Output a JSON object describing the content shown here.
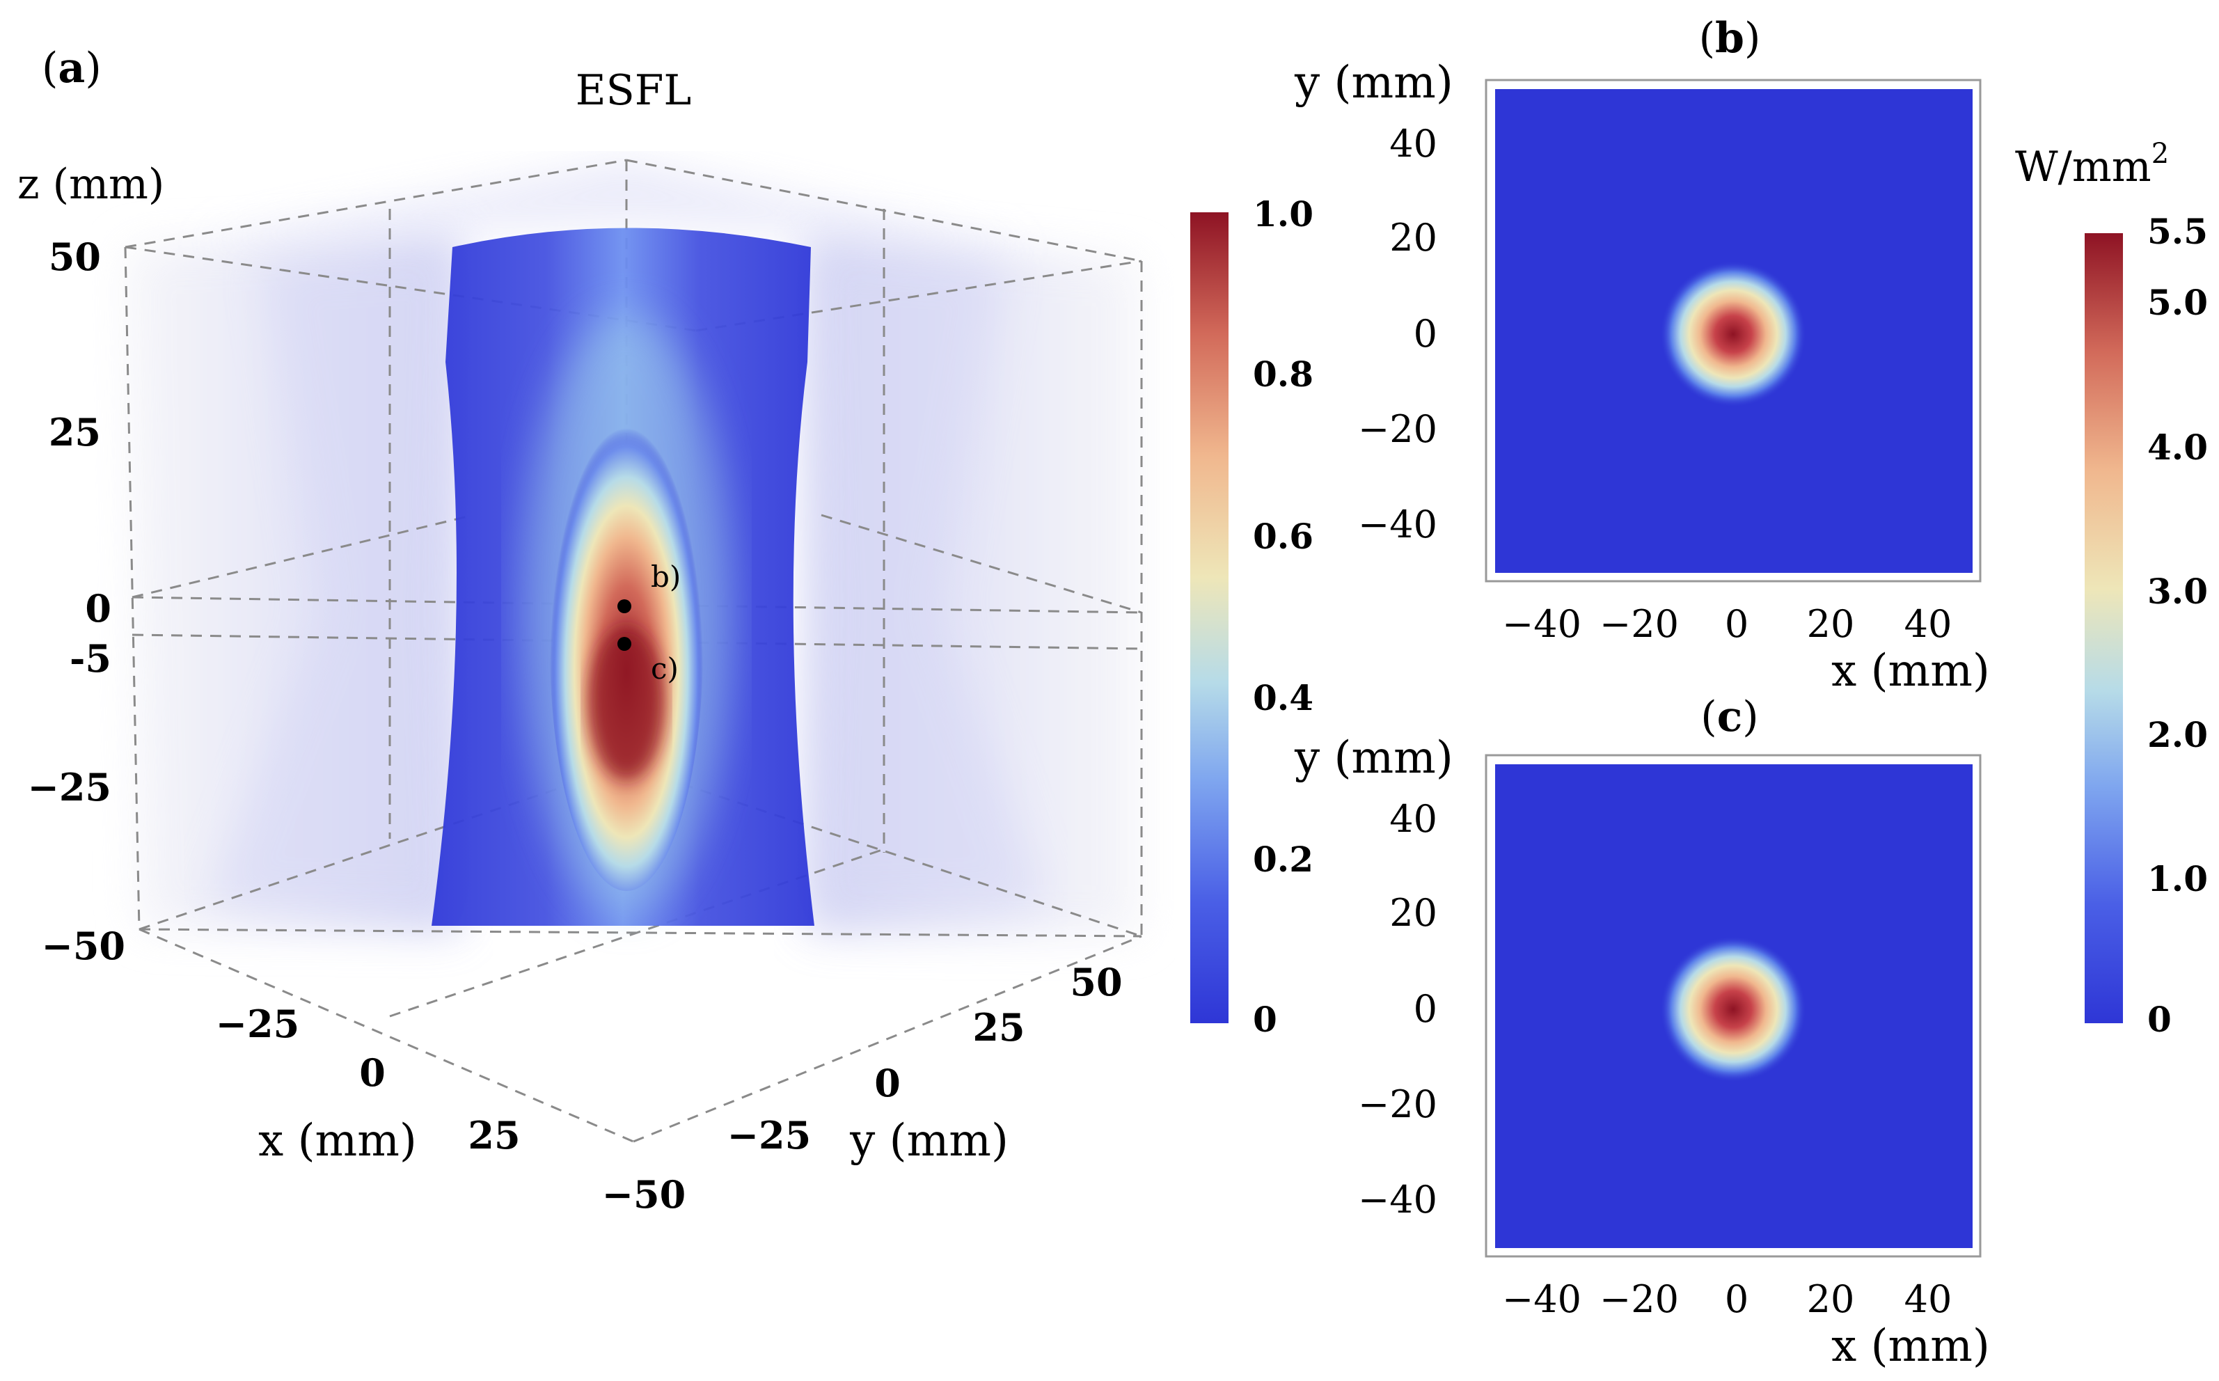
{
  "figure": {
    "panels": {
      "a": {
        "label": "(a)",
        "label_letter": "a"
      },
      "b": {
        "label": "(b)",
        "label_letter": "b"
      },
      "c": {
        "label": "(c)",
        "label_letter": "c"
      }
    }
  },
  "chart_data": [
    {
      "id": "a",
      "type": "heatmap",
      "subtype": "3d-volume",
      "title": "ESFL",
      "xlabel": "x (mm)",
      "ylabel": "y (mm)",
      "zlabel": "z (mm)",
      "x_ticks": [
        "−25",
        "0",
        "25"
      ],
      "y_ticks": [
        "−50",
        "−25",
        "0",
        "25",
        "50"
      ],
      "z_ticks": [
        "50",
        "25",
        "0",
        "-5",
        "−25",
        "−50"
      ],
      "xlim": [
        -50,
        50
      ],
      "ylim": [
        -50,
        50
      ],
      "zlim": [
        -50,
        50
      ],
      "colorbar": {
        "min": 0,
        "max": 1.0,
        "ticks": [
          "1.0",
          "0.8",
          "0.6",
          "0.4",
          "0.2",
          "0"
        ]
      },
      "slice_markers": [
        {
          "label": "b)",
          "z": 0
        },
        {
          "label": "c)",
          "z": -5
        }
      ],
      "peak_z_range": [
        -15,
        5
      ]
    },
    {
      "id": "b",
      "type": "heatmap",
      "title": "(b)",
      "xlabel": "x (mm)",
      "ylabel": "y (mm)",
      "xlim": [
        -50,
        50
      ],
      "ylim": [
        -50,
        50
      ],
      "x_ticks": [
        "−40",
        "−20",
        "0",
        "20",
        "40"
      ],
      "y_ticks": [
        "40",
        "20",
        "0",
        "−20",
        "−40"
      ],
      "spot_center": [
        0,
        0
      ],
      "spot_radius_mm": 15,
      "peak": 5.3
    },
    {
      "id": "c",
      "type": "heatmap",
      "title": "(c)",
      "xlabel": "x (mm)",
      "ylabel": "y (mm)",
      "xlim": [
        -50,
        50
      ],
      "ylim": [
        -50,
        50
      ],
      "x_ticks": [
        "−40",
        "−20",
        "0",
        "20",
        "40"
      ],
      "y_ticks": [
        "40",
        "20",
        "0",
        "−20",
        "−40"
      ],
      "spot_center": [
        0,
        0
      ],
      "spot_radius_mm": 15,
      "peak": 5.5
    }
  ],
  "colorbar_right": {
    "unit": "W/mm",
    "unit_sup": "2",
    "min": 0,
    "max": 5.5,
    "ticks": [
      "5.5",
      "5.0",
      "4.0",
      "3.0",
      "2.0",
      "1.0",
      "0"
    ]
  },
  "colors": {
    "low": "#2e36d6",
    "mid": "#eee6b8",
    "high": "#8e1324",
    "haze": "#c6c8f0"
  }
}
